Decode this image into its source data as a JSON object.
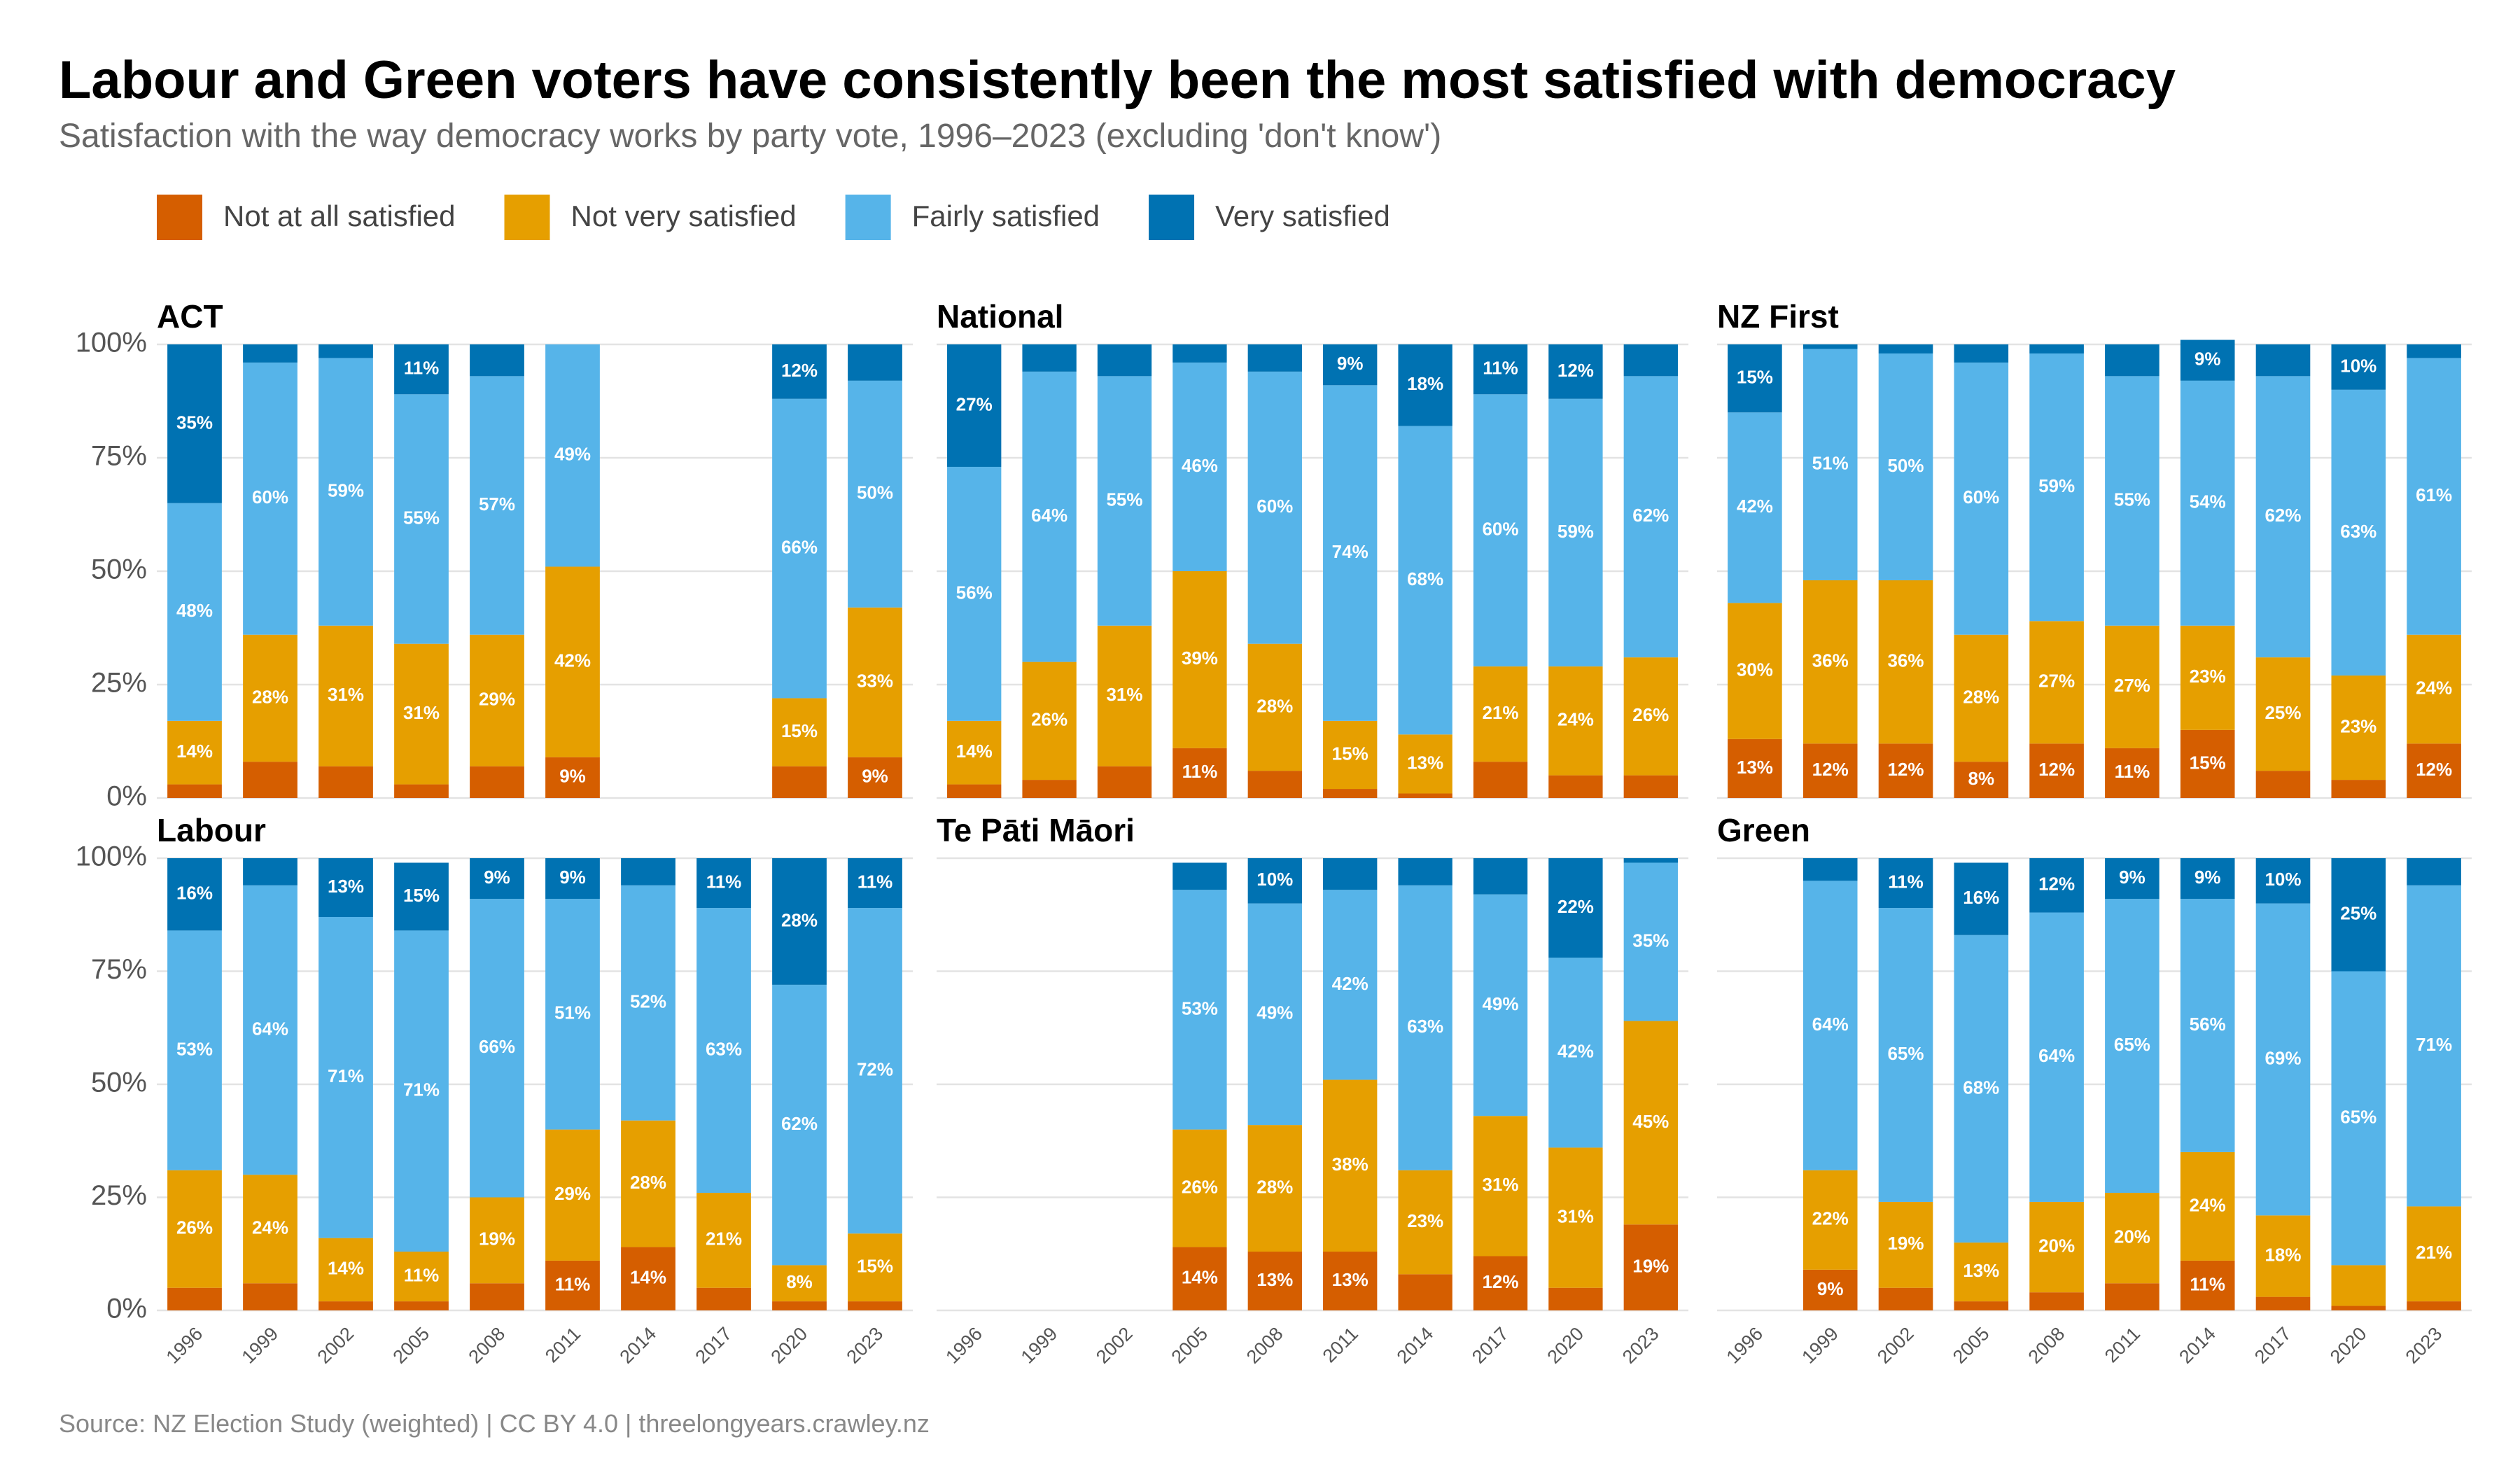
{
  "title": "Labour and Green voters have consistently been the most satisfied with democracy",
  "subtitle": "Satisfaction with the way democracy works by party vote, 1996–2023 (excluding 'don't know')",
  "source": "Source: NZ Election Study (weighted) | CC BY 4.0 | threelongyears.crawley.nz",
  "chart_data": [
    {
      "type": "bar",
      "stacked": true,
      "title": "ACT",
      "categories": [
        "1996",
        "1999",
        "2002",
        "2005",
        "2008",
        "2011",
        "2014",
        "2017",
        "2020",
        "2023"
      ],
      "ylim": [
        0,
        100
      ],
      "yticks": [
        {
          "value": 0,
          "label": "0%"
        },
        {
          "value": 25,
          "label": "25%"
        },
        {
          "value": 50,
          "label": "50%"
        },
        {
          "value": 75,
          "label": "75%"
        },
        {
          "value": 100,
          "label": "100%"
        }
      ],
      "grid": true,
      "series": [
        {
          "name": "Not at all satisfied",
          "color": "#D55E00",
          "values": [
            3,
            8,
            7,
            3,
            7,
            9,
            null,
            null,
            7,
            9
          ],
          "value_labels": [
            null,
            null,
            null,
            null,
            null,
            "9%",
            null,
            null,
            null,
            "9%"
          ]
        },
        {
          "name": "Not very satisfied",
          "color": "#E69F00",
          "values": [
            14,
            28,
            31,
            31,
            29,
            42,
            null,
            null,
            15,
            33
          ],
          "value_labels": [
            "14%",
            "28%",
            "31%",
            "31%",
            "29%",
            "42%",
            null,
            null,
            "15%",
            "33%"
          ]
        },
        {
          "name": "Fairly satisfied",
          "color": "#56B4E9",
          "values": [
            48,
            60,
            59,
            55,
            57,
            49,
            null,
            null,
            66,
            50
          ],
          "value_labels": [
            "48%",
            "60%",
            "59%",
            "55%",
            "57%",
            "49%",
            null,
            null,
            "66%",
            "50%"
          ]
        },
        {
          "name": "Very satisfied",
          "color": "#0072B2",
          "values": [
            35,
            4,
            3,
            11,
            7,
            0,
            null,
            null,
            12,
            8
          ],
          "value_labels": [
            "35%",
            null,
            null,
            "11%",
            null,
            null,
            null,
            null,
            "12%",
            null
          ]
        }
      ]
    },
    {
      "type": "bar",
      "stacked": true,
      "title": "National",
      "categories": [
        "1996",
        "1999",
        "2002",
        "2005",
        "2008",
        "2011",
        "2014",
        "2017",
        "2020",
        "2023"
      ],
      "ylim": [
        0,
        100
      ],
      "yticks": [
        {
          "value": 0,
          "label": "0%"
        },
        {
          "value": 25,
          "label": "25%"
        },
        {
          "value": 50,
          "label": "50%"
        },
        {
          "value": 75,
          "label": "75%"
        },
        {
          "value": 100,
          "label": "100%"
        }
      ],
      "grid": true,
      "series": [
        {
          "name": "Not at all satisfied",
          "color": "#D55E00",
          "values": [
            3,
            4,
            7,
            11,
            6,
            2,
            1,
            8,
            5,
            5
          ],
          "value_labels": [
            null,
            null,
            null,
            "11%",
            null,
            null,
            null,
            null,
            null,
            null
          ]
        },
        {
          "name": "Not very satisfied",
          "color": "#E69F00",
          "values": [
            14,
            26,
            31,
            39,
            28,
            15,
            13,
            21,
            24,
            26
          ],
          "value_labels": [
            "14%",
            "26%",
            "31%",
            "39%",
            "28%",
            "15%",
            "13%",
            "21%",
            "24%",
            "26%"
          ]
        },
        {
          "name": "Fairly satisfied",
          "color": "#56B4E9",
          "values": [
            56,
            64,
            55,
            46,
            60,
            74,
            68,
            60,
            59,
            62
          ],
          "value_labels": [
            "56%",
            "64%",
            "55%",
            "46%",
            "60%",
            "74%",
            "68%",
            "60%",
            "59%",
            "62%"
          ]
        },
        {
          "name": "Very satisfied",
          "color": "#0072B2",
          "values": [
            27,
            6,
            7,
            4,
            6,
            9,
            18,
            11,
            12,
            7
          ],
          "value_labels": [
            "27%",
            null,
            null,
            null,
            null,
            "9%",
            "18%",
            "11%",
            "12%",
            null
          ]
        }
      ]
    },
    {
      "type": "bar",
      "stacked": true,
      "title": "NZ First",
      "categories": [
        "1996",
        "1999",
        "2002",
        "2005",
        "2008",
        "2011",
        "2014",
        "2017",
        "2020",
        "2023"
      ],
      "ylim": [
        0,
        100
      ],
      "yticks": [
        {
          "value": 0,
          "label": "0%"
        },
        {
          "value": 25,
          "label": "25%"
        },
        {
          "value": 50,
          "label": "50%"
        },
        {
          "value": 75,
          "label": "75%"
        },
        {
          "value": 100,
          "label": "100%"
        }
      ],
      "grid": true,
      "series": [
        {
          "name": "Not at all satisfied",
          "color": "#D55E00",
          "values": [
            13,
            12,
            12,
            8,
            12,
            11,
            15,
            6,
            4,
            12
          ],
          "value_labels": [
            "13%",
            "12%",
            "12%",
            "8%",
            "12%",
            "11%",
            "15%",
            null,
            null,
            "12%"
          ]
        },
        {
          "name": "Not very satisfied",
          "color": "#E69F00",
          "values": [
            30,
            36,
            36,
            28,
            27,
            27,
            23,
            25,
            23,
            24
          ],
          "value_labels": [
            "30%",
            "36%",
            "36%",
            "28%",
            "27%",
            "27%",
            "23%",
            "25%",
            "23%",
            "24%"
          ]
        },
        {
          "name": "Fairly satisfied",
          "color": "#56B4E9",
          "values": [
            42,
            51,
            50,
            60,
            59,
            55,
            54,
            62,
            63,
            61
          ],
          "value_labels": [
            "42%",
            "51%",
            "50%",
            "60%",
            "59%",
            "55%",
            "54%",
            "62%",
            "63%",
            "61%"
          ]
        },
        {
          "name": "Very satisfied",
          "color": "#0072B2",
          "values": [
            15,
            1,
            2,
            4,
            2,
            7,
            9,
            7,
            10,
            3
          ],
          "value_labels": [
            "15%",
            null,
            null,
            null,
            null,
            null,
            "9%",
            null,
            "10%",
            null
          ]
        }
      ]
    },
    {
      "type": "bar",
      "stacked": true,
      "title": "Labour",
      "categories": [
        "1996",
        "1999",
        "2002",
        "2005",
        "2008",
        "2011",
        "2014",
        "2017",
        "2020",
        "2023"
      ],
      "ylim": [
        0,
        100
      ],
      "yticks": [
        {
          "value": 0,
          "label": "0%"
        },
        {
          "value": 25,
          "label": "25%"
        },
        {
          "value": 50,
          "label": "50%"
        },
        {
          "value": 75,
          "label": "75%"
        },
        {
          "value": 100,
          "label": "100%"
        }
      ],
      "grid": true,
      "series": [
        {
          "name": "Not at all satisfied",
          "color": "#D55E00",
          "values": [
            5,
            6,
            2,
            2,
            6,
            11,
            14,
            5,
            2,
            2
          ],
          "value_labels": [
            null,
            null,
            null,
            null,
            null,
            "11%",
            "14%",
            null,
            null,
            null
          ]
        },
        {
          "name": "Not very satisfied",
          "color": "#E69F00",
          "values": [
            26,
            24,
            14,
            11,
            19,
            29,
            28,
            21,
            8,
            15
          ],
          "value_labels": [
            "26%",
            "24%",
            "14%",
            "11%",
            "19%",
            "29%",
            "28%",
            "21%",
            "8%",
            "15%"
          ]
        },
        {
          "name": "Fairly satisfied",
          "color": "#56B4E9",
          "values": [
            53,
            64,
            71,
            71,
            66,
            51,
            52,
            63,
            62,
            72
          ],
          "value_labels": [
            "53%",
            "64%",
            "71%",
            "71%",
            "66%",
            "51%",
            "52%",
            "63%",
            "62%",
            "72%"
          ]
        },
        {
          "name": "Very satisfied",
          "color": "#0072B2",
          "values": [
            16,
            6,
            13,
            15,
            9,
            9,
            6,
            11,
            28,
            11
          ],
          "value_labels": [
            "16%",
            null,
            "13%",
            "15%",
            "9%",
            "9%",
            null,
            "11%",
            "28%",
            "11%"
          ]
        }
      ]
    },
    {
      "type": "bar",
      "stacked": true,
      "title": "Te Pāti Māori",
      "categories": [
        "1996",
        "1999",
        "2002",
        "2005",
        "2008",
        "2011",
        "2014",
        "2017",
        "2020",
        "2023"
      ],
      "ylim": [
        0,
        100
      ],
      "yticks": [
        {
          "value": 0,
          "label": "0%"
        },
        {
          "value": 25,
          "label": "25%"
        },
        {
          "value": 50,
          "label": "50%"
        },
        {
          "value": 75,
          "label": "75%"
        },
        {
          "value": 100,
          "label": "100%"
        }
      ],
      "grid": true,
      "series": [
        {
          "name": "Not at all satisfied",
          "color": "#D55E00",
          "values": [
            null,
            null,
            null,
            14,
            13,
            13,
            8,
            12,
            5,
            19
          ],
          "value_labels": [
            null,
            null,
            null,
            "14%",
            "13%",
            "13%",
            null,
            "12%",
            null,
            "19%"
          ]
        },
        {
          "name": "Not very satisfied",
          "color": "#E69F00",
          "values": [
            null,
            null,
            null,
            26,
            28,
            38,
            23,
            31,
            31,
            45
          ],
          "value_labels": [
            null,
            null,
            null,
            "26%",
            "28%",
            "38%",
            "23%",
            "31%",
            "31%",
            "45%"
          ]
        },
        {
          "name": "Fairly satisfied",
          "color": "#56B4E9",
          "values": [
            null,
            null,
            null,
            53,
            49,
            42,
            63,
            49,
            42,
            35
          ],
          "value_labels": [
            null,
            null,
            null,
            "53%",
            "49%",
            "42%",
            "63%",
            "49%",
            "42%",
            "35%"
          ]
        },
        {
          "name": "Very satisfied",
          "color": "#0072B2",
          "values": [
            null,
            null,
            null,
            6,
            10,
            7,
            6,
            8,
            22,
            1
          ],
          "value_labels": [
            null,
            null,
            null,
            null,
            "10%",
            null,
            null,
            null,
            "22%",
            null
          ]
        }
      ]
    },
    {
      "type": "bar",
      "stacked": true,
      "title": "Green",
      "categories": [
        "1996",
        "1999",
        "2002",
        "2005",
        "2008",
        "2011",
        "2014",
        "2017",
        "2020",
        "2023"
      ],
      "ylim": [
        0,
        100
      ],
      "yticks": [
        {
          "value": 0,
          "label": "0%"
        },
        {
          "value": 25,
          "label": "25%"
        },
        {
          "value": 50,
          "label": "50%"
        },
        {
          "value": 75,
          "label": "75%"
        },
        {
          "value": 100,
          "label": "100%"
        }
      ],
      "grid": true,
      "series": [
        {
          "name": "Not at all satisfied",
          "color": "#D55E00",
          "values": [
            null,
            9,
            5,
            2,
            4,
            6,
            11,
            3,
            1,
            2
          ],
          "value_labels": [
            null,
            "9%",
            null,
            null,
            null,
            null,
            "11%",
            null,
            null,
            null
          ]
        },
        {
          "name": "Not very satisfied",
          "color": "#E69F00",
          "values": [
            null,
            22,
            19,
            13,
            20,
            20,
            24,
            18,
            9,
            21
          ],
          "value_labels": [
            null,
            "22%",
            "19%",
            "13%",
            "20%",
            "20%",
            "24%",
            "18%",
            null,
            "21%"
          ]
        },
        {
          "name": "Fairly satisfied",
          "color": "#56B4E9",
          "values": [
            null,
            64,
            65,
            68,
            64,
            65,
            56,
            69,
            65,
            71
          ],
          "value_labels": [
            null,
            "64%",
            "65%",
            "68%",
            "64%",
            "65%",
            "56%",
            "69%",
            "65%",
            "71%"
          ]
        },
        {
          "name": "Very satisfied",
          "color": "#0072B2",
          "values": [
            null,
            5,
            11,
            16,
            12,
            9,
            9,
            10,
            25,
            6
          ],
          "value_labels": [
            null,
            null,
            "11%",
            "16%",
            "12%",
            "9%",
            "9%",
            "10%",
            "25%",
            null
          ]
        }
      ]
    }
  ]
}
